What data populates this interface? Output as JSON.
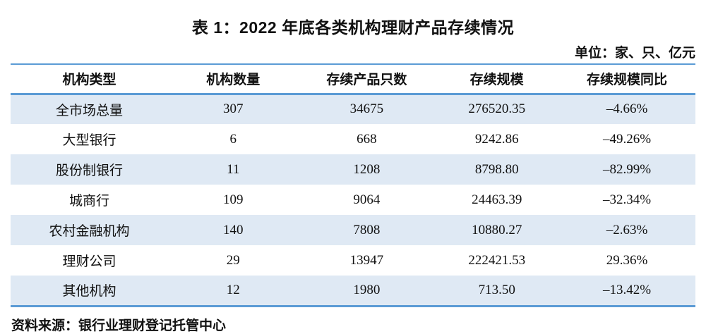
{
  "title": "表 1：2022 年底各类机构理财产品存续情况",
  "unit_note": "单位：家、只、亿元",
  "source": "资料来源：银行业理财登记托管中心",
  "colors": {
    "table_border_blue": "#5b9bd5",
    "row_band_blue": "#dfe9f4",
    "text": "#111111"
  },
  "table": {
    "headers": [
      "机构类型",
      "机构数量",
      "存续产品只数",
      "存续规模",
      "存续规模同比"
    ],
    "rows": [
      [
        "全市场总量",
        "307",
        "34675",
        "276520.35",
        "–4.66%"
      ],
      [
        "大型银行",
        "6",
        "668",
        "9242.86",
        "–49.26%"
      ],
      [
        "股份制银行",
        "11",
        "1208",
        "8798.80",
        "–82.99%"
      ],
      [
        "城商行",
        "109",
        "9064",
        "24463.39",
        "–32.34%"
      ],
      [
        "农村金融机构",
        "140",
        "7808",
        "10880.27",
        "–2.63%"
      ],
      [
        "理财公司",
        "29",
        "13947",
        "222421.53",
        "29.36%"
      ],
      [
        "其他机构",
        "12",
        "1980",
        "713.50",
        "–13.42%"
      ]
    ]
  }
}
